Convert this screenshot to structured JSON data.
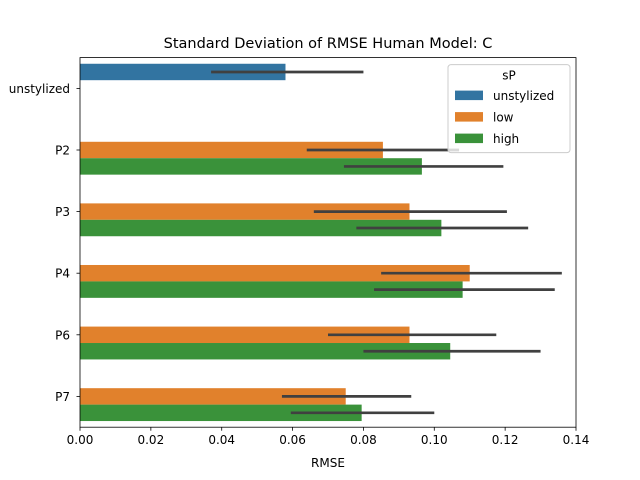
{
  "chart_data": {
    "type": "bar",
    "orientation": "horizontal",
    "title": "Standard Deviation of RMSE Human Model: C",
    "xlabel": "RMSE",
    "ylabel": "",
    "xlim": [
      0,
      0.14
    ],
    "xticks": [
      "0.00",
      "0.02",
      "0.04",
      "0.06",
      "0.08",
      "0.10",
      "0.12",
      "0.14"
    ],
    "categories": [
      "unstylized",
      "P2",
      "P3",
      "P4",
      "P6",
      "P7"
    ],
    "legend": {
      "title": "sP",
      "placement": "upper right"
    },
    "series": [
      {
        "name": "unstylized",
        "color": "#3274a1",
        "values": [
          0.058,
          null,
          null,
          null,
          null,
          null
        ],
        "ci_low": [
          0.037,
          null,
          null,
          null,
          null,
          null
        ],
        "ci_high": [
          0.08,
          null,
          null,
          null,
          null,
          null
        ]
      },
      {
        "name": "low",
        "color": "#e1812c",
        "values": [
          null,
          0.0855,
          0.093,
          0.11,
          0.093,
          0.075
        ],
        "ci_low": [
          null,
          0.064,
          0.066,
          0.085,
          0.07,
          0.057
        ],
        "ci_high": [
          null,
          0.107,
          0.1205,
          0.136,
          0.1175,
          0.0935
        ]
      },
      {
        "name": "high",
        "color": "#3a923a",
        "values": [
          null,
          0.0965,
          0.102,
          0.108,
          0.1045,
          0.0795
        ],
        "ci_low": [
          null,
          0.0745,
          0.078,
          0.083,
          0.08,
          0.0595
        ],
        "ci_high": [
          null,
          0.1195,
          0.1265,
          0.134,
          0.13,
          0.1
        ]
      }
    ],
    "errorbar_color": "#404040"
  }
}
